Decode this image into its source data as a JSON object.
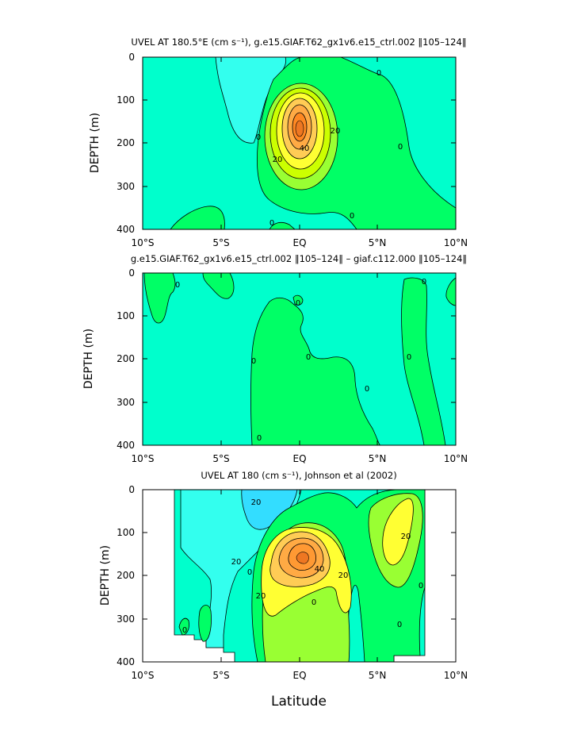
{
  "figure": {
    "xtitle": "Latitude"
  },
  "chart_data": [
    {
      "type": "contour",
      "id": "p1",
      "title": "UVEL AT 180.5°E (cm s⁻¹), g.e15.GIAF.T62_gx1v6.e15_ctrl.002 ‖105–124‖",
      "xlabel": "",
      "ylabel": "DEPTH (m)",
      "xlim": [
        -10,
        10
      ],
      "ylim": [
        400,
        0
      ],
      "x_ticks": [
        "10°S",
        "5°S",
        "EQ",
        "5°N",
        "10°N"
      ],
      "y_ticks": [
        "0",
        "100",
        "200",
        "300",
        "400"
      ],
      "contour_labels": [
        "0",
        "20",
        "40",
        "20",
        "0",
        "0",
        "0",
        "0",
        "0"
      ],
      "levels": [
        0,
        10,
        20,
        30,
        40,
        50,
        60
      ],
      "max_value": 60,
      "core": {
        "lat": 0.2,
        "depth": 160
      }
    },
    {
      "type": "contour",
      "id": "p2",
      "title": "g.e15.GIAF.T62_gx1v6.e15_ctrl.002 ‖105–124‖ – giaf.c112.000 ‖105–124‖",
      "xlabel": "",
      "ylabel": "DEPTH (m)",
      "xlim": [
        -10,
        10
      ],
      "ylim": [
        400,
        0
      ],
      "x_ticks": [
        "10°S",
        "5°S",
        "EQ",
        "5°N",
        "10°N"
      ],
      "y_ticks": [
        "0",
        "100",
        "200",
        "300",
        "400"
      ],
      "contour_labels": [
        "0",
        "0",
        "0",
        "0",
        "0",
        "0",
        "0",
        "0"
      ],
      "levels": [
        0
      ]
    },
    {
      "type": "contour",
      "id": "p3",
      "title": "UVEL AT 180 (cm s⁻¹), Johnson et al (2002)",
      "xlabel": "Latitude",
      "ylabel": "DEPTH (m)",
      "xlim": [
        -10,
        10
      ],
      "ylim": [
        400,
        0
      ],
      "data_lat_range": [
        -8,
        8
      ],
      "x_ticks": [
        "10°S",
        "5°S",
        "EQ",
        "5°N",
        "10°N"
      ],
      "y_ticks": [
        "0",
        "100",
        "200",
        "300",
        "400"
      ],
      "contour_labels": [
        "20",
        "0",
        "20",
        "40",
        "20",
        "0",
        "20",
        "20",
        "0",
        "0",
        "0"
      ],
      "levels": [
        -20,
        -10,
        0,
        10,
        20,
        30,
        40,
        50,
        60
      ],
      "core": {
        "lat": 0.5,
        "depth": 170
      }
    }
  ]
}
